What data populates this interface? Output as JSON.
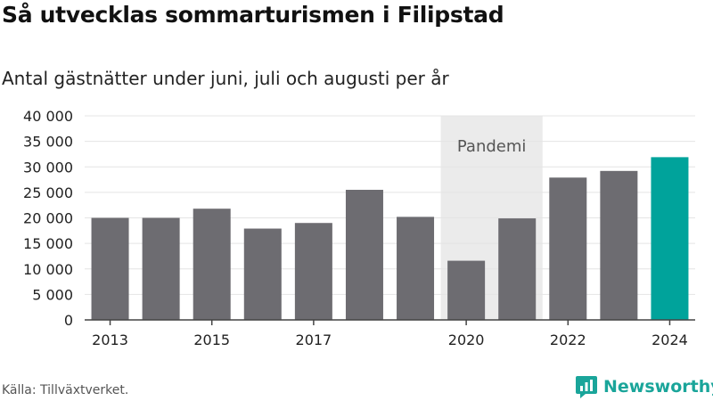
{
  "header": {
    "title": "Så utvecklas sommarturismen i Filipstad",
    "subtitle": "Antal gästnätter under juni, juli och augusti per år"
  },
  "footer": {
    "source": "Källa: Tillväxtverket.",
    "brand": "Newsworthy",
    "brand_icon": "newsworthy-logo-icon"
  },
  "colors": {
    "bar": "#6d6c71",
    "highlight": "#00a39b",
    "band": "#ebebeb",
    "grid": "#e4e4e4",
    "brand": "#1aa59a"
  },
  "chart_data": {
    "type": "bar",
    "categories": [
      "2013",
      "2014",
      "2015",
      "2016",
      "2017",
      "2018",
      "2019",
      "2020",
      "2021",
      "2022",
      "2023",
      "2024"
    ],
    "values": [
      20000,
      20000,
      21800,
      17900,
      19000,
      25500,
      20200,
      11600,
      19900,
      27900,
      29200,
      31900
    ],
    "highlight_index": 11,
    "x_tick_labels": [
      "2013",
      "2015",
      "2017",
      "2020",
      "2022",
      "2024"
    ],
    "y_tick_labels": [
      "0",
      "5 000",
      "10 000",
      "15 000",
      "20 000",
      "25 000",
      "30 000",
      "35 000",
      "40 000"
    ],
    "ylim": [
      0,
      40000
    ],
    "y_ticks": [
      0,
      5000,
      10000,
      15000,
      20000,
      25000,
      30000,
      35000,
      40000
    ],
    "grid": true,
    "annotation": {
      "label": "Pandemi",
      "from_category": "2020",
      "to_category": "2021"
    },
    "xlabel": "",
    "ylabel": ""
  }
}
